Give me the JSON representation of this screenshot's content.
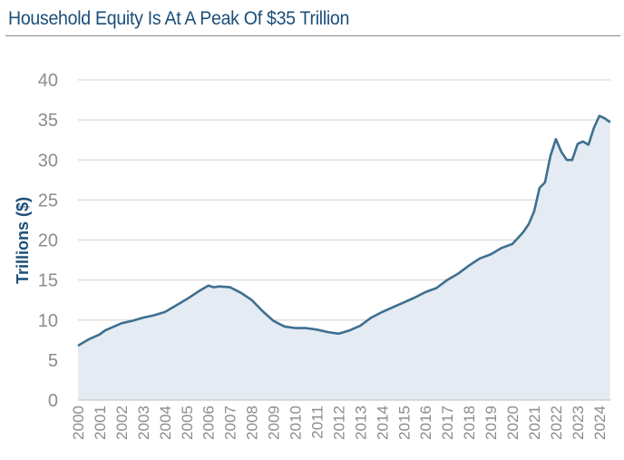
{
  "chart_data": {
    "type": "area",
    "title": "Household Equity Is At A Peak Of $35 Trillion",
    "xlabel": "",
    "ylabel": "Trillions ($)",
    "ylim": [
      0,
      40
    ],
    "yticks": [
      0,
      5,
      10,
      15,
      20,
      25,
      30,
      35,
      40
    ],
    "xticks": [
      "2000",
      "2001",
      "2002",
      "2003",
      "2004",
      "2005",
      "2006",
      "2007",
      "2008",
      "2009",
      "2010",
      "2011",
      "2012",
      "2013",
      "2014",
      "2015",
      "2016",
      "2017",
      "2018",
      "2019",
      "2020",
      "2021",
      "2022",
      "2023",
      "2024"
    ],
    "grid": true,
    "series": [
      {
        "name": "Household Equity",
        "x": [
          2000,
          2000.5,
          2001,
          2001.25,
          2001.5,
          2002,
          2002.5,
          2003,
          2003.5,
          2004,
          2004.5,
          2005,
          2005.5,
          2006,
          2006.25,
          2006.5,
          2007,
          2007.5,
          2008,
          2008.5,
          2009,
          2009.5,
          2010,
          2010.5,
          2011,
          2011.5,
          2012,
          2012.5,
          2013,
          2013.5,
          2014,
          2014.5,
          2015,
          2015.5,
          2016,
          2016.5,
          2017,
          2017.5,
          2018,
          2018.5,
          2019,
          2019.5,
          2020,
          2020.5,
          2020.75,
          2021,
          2021.25,
          2021.5,
          2021.75,
          2022,
          2022.25,
          2022.5,
          2022.75,
          2023,
          2023.25,
          2023.5,
          2023.75,
          2024,
          2024.25,
          2024.5
        ],
        "values": [
          6.8,
          7.6,
          8.2,
          8.7,
          9.0,
          9.6,
          9.9,
          10.3,
          10.6,
          11.0,
          11.8,
          12.6,
          13.5,
          14.3,
          14.1,
          14.2,
          14.1,
          13.4,
          12.5,
          11.1,
          9.9,
          9.2,
          9.0,
          9.0,
          8.8,
          8.5,
          8.3,
          8.7,
          9.3,
          10.3,
          11.0,
          11.6,
          12.2,
          12.8,
          13.5,
          14.0,
          15.0,
          15.8,
          16.8,
          17.7,
          18.2,
          19.0,
          19.5,
          21.0,
          22.0,
          23.6,
          26.5,
          27.2,
          30.5,
          32.6,
          31.0,
          30.0,
          30.0,
          32.0,
          32.3,
          31.9,
          34.0,
          35.5,
          35.2,
          34.7
        ],
        "color": "#3f6f8f",
        "fill": "#e4ebf2"
      }
    ]
  }
}
